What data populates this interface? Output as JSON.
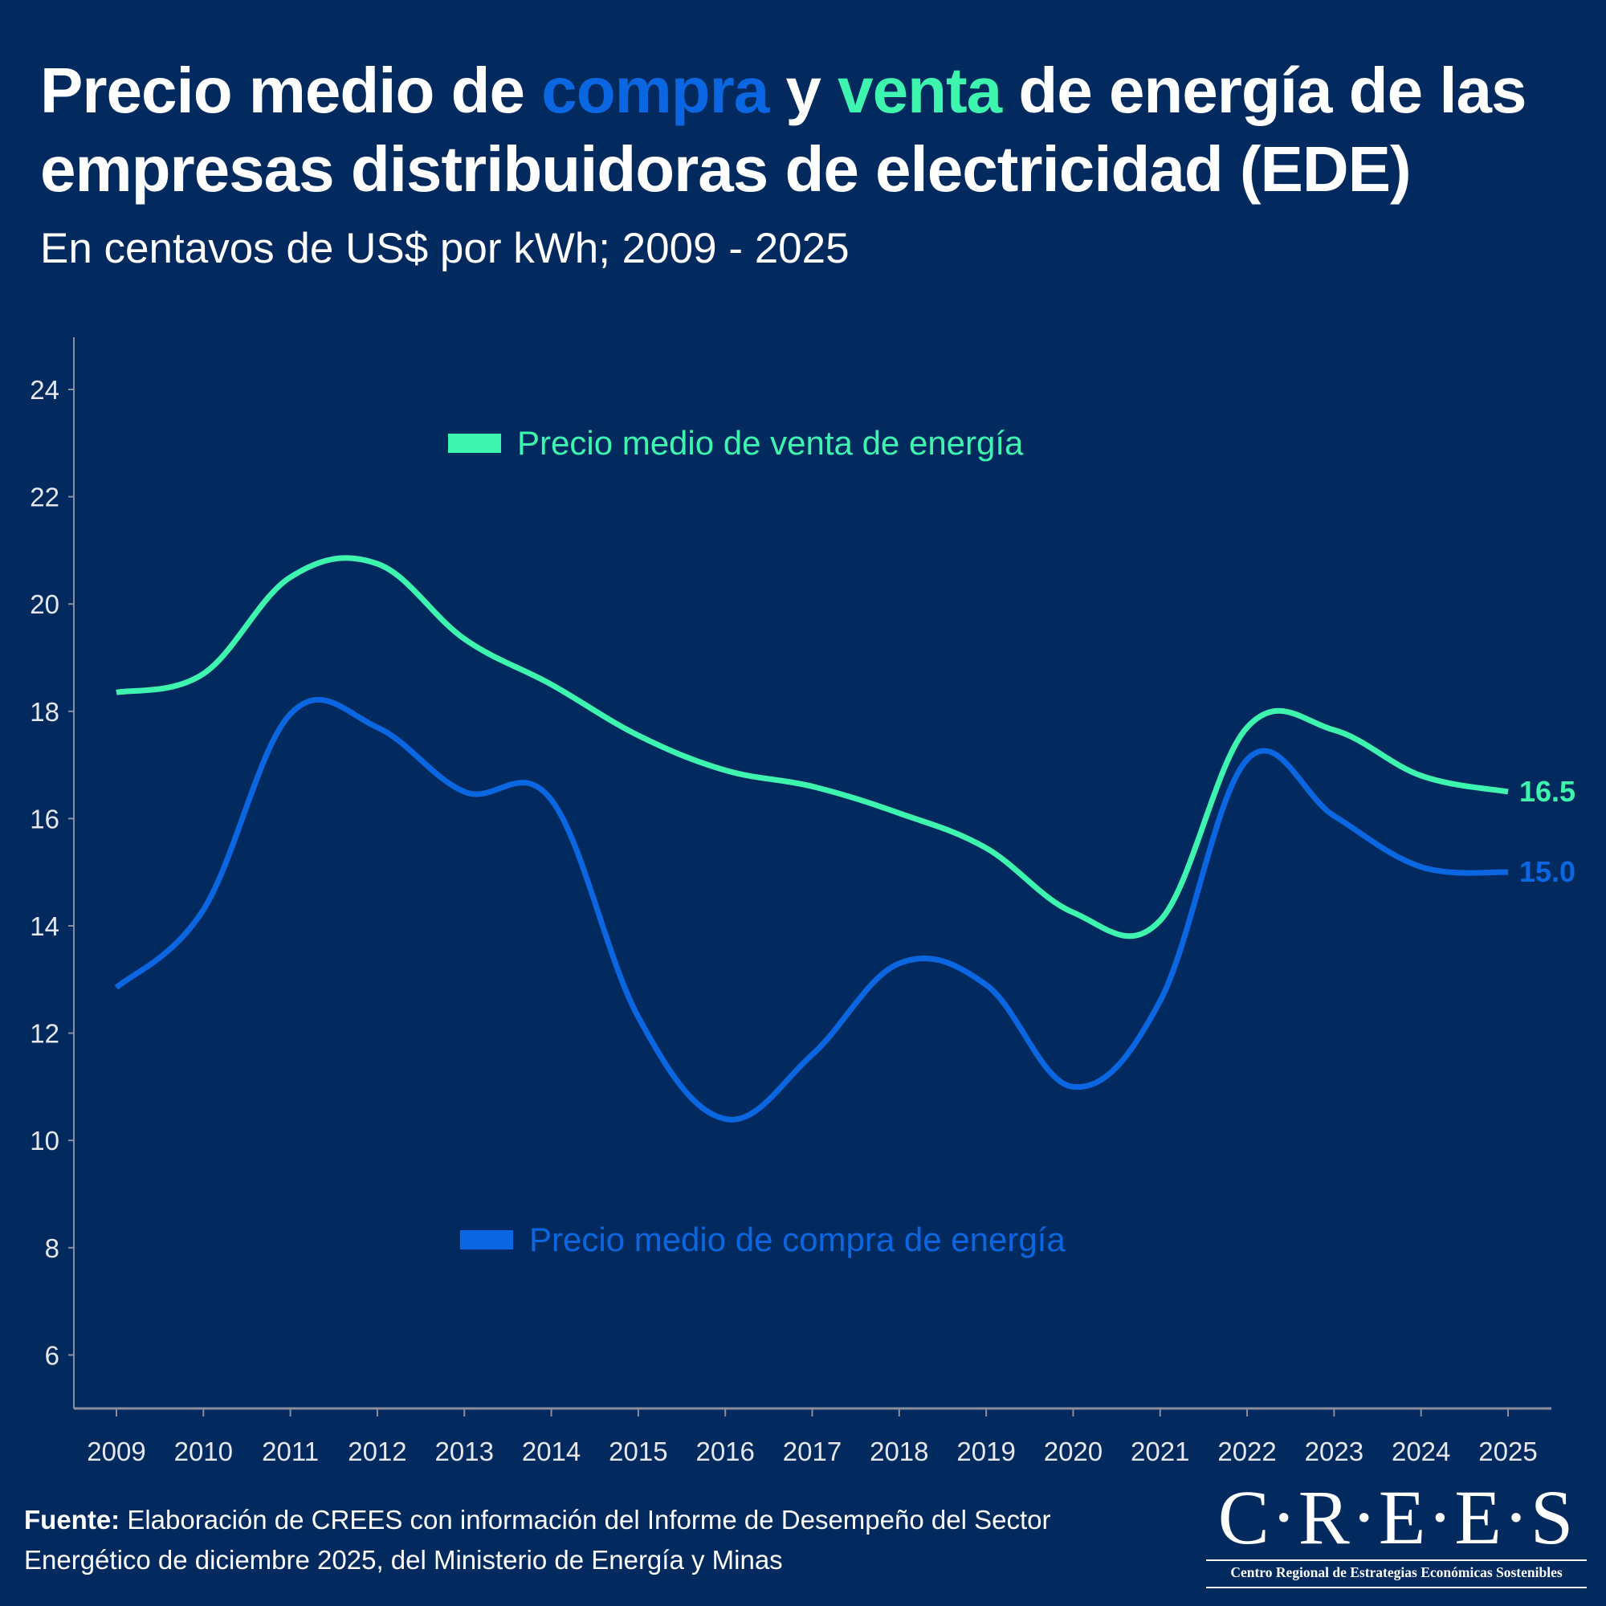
{
  "title": {
    "part1": "Precio medio de ",
    "highlight_compra": "compra",
    "part2": " y ",
    "highlight_venta": "venta",
    "part3": " de energía de las empresas distribuidoras de electricidad (EDE)"
  },
  "subtitle": "En centavos de US$ por kWh; 2009 - 2025",
  "colors": {
    "background": "#032a5e",
    "compra": "#0b67e1",
    "venta": "#3ef5b0",
    "axis": "#8a8f99",
    "tick_label": "#e6e8ee"
  },
  "chart_data": {
    "type": "line",
    "title": "Precio medio de compra y venta de energía de las empresas distribuidoras de electricidad (EDE)",
    "subtitle": "En centavos de US$ por kWh; 2009 - 2025",
    "xlabel": "",
    "ylabel": "",
    "x": [
      "2009",
      "2010",
      "2011",
      "2012",
      "2013",
      "2014",
      "2015",
      "2016",
      "2017",
      "2018",
      "2019",
      "2020",
      "2021",
      "2022",
      "2023",
      "2024",
      "2025"
    ],
    "ylim": [
      5,
      25
    ],
    "yticks": [
      6,
      8,
      10,
      12,
      14,
      16,
      18,
      20,
      22,
      24
    ],
    "grid": false,
    "smoothed": true,
    "series": [
      {
        "name": "Precio medio de venta de energía",
        "color": "#3ef5b0",
        "values": [
          18.35,
          18.7,
          20.5,
          20.75,
          19.35,
          18.5,
          17.55,
          16.9,
          16.6,
          16.1,
          15.45,
          14.25,
          14.1,
          17.7,
          17.65,
          16.8,
          16.5
        ],
        "end_label": "16.5",
        "legend_position": "top-center"
      },
      {
        "name": "Precio medio de compra de energía",
        "color": "#0b67e1",
        "values": [
          12.85,
          14.3,
          17.95,
          17.7,
          16.5,
          16.35,
          12.3,
          10.4,
          11.6,
          13.3,
          12.9,
          11.0,
          12.6,
          17.1,
          16.05,
          15.1,
          15.0
        ],
        "end_label": "15.0",
        "legend_position": "bottom-center"
      }
    ]
  },
  "footer": {
    "source_label": "Fuente:",
    "source_text": " Elaboración de CREES con información del Informe de Desempeño del Sector Energético de diciembre 2025, del Ministerio de Energía y Minas"
  },
  "logo": {
    "wordmark": "C·R·E·E·S",
    "tagline": "Centro Regional de Estrategias Económicas Sostenibles"
  }
}
